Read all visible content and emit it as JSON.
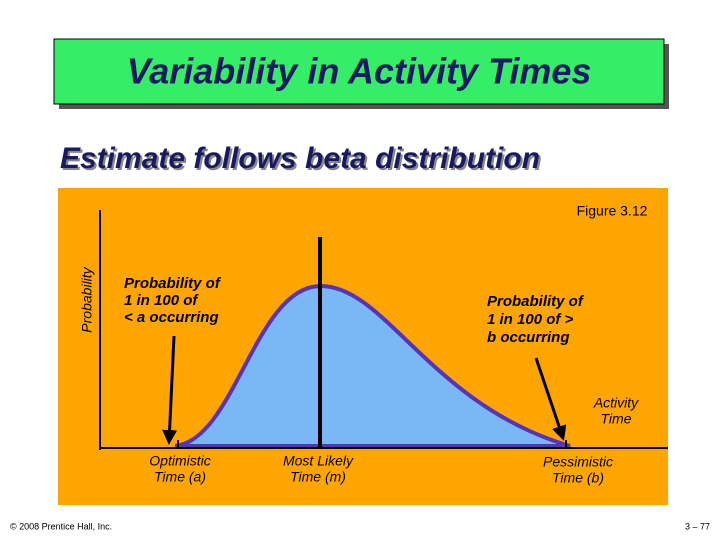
{
  "title": "Variability in Activity Times",
  "subtitle": "Estimate follows beta distribution",
  "figure_label": "Figure 3.12",
  "y_axis_label": "Probability",
  "annotations": {
    "left": [
      "Probability of",
      "1 in 100 of",
      "< a occurring"
    ],
    "right": [
      "Probability of",
      "1 in 100 of >",
      "b occurring"
    ]
  },
  "x_axis_label": [
    "Activity",
    "Time"
  ],
  "x_labels": {
    "optimistic": [
      "Optimistic",
      "Time (a)"
    ],
    "most_likely": [
      "Most Likely",
      "Time (m)"
    ],
    "pessimistic": [
      "Pessimistic",
      "Time (b)"
    ]
  },
  "footer": {
    "copyright": "© 2008 Prentice Hall, Inc.",
    "page": "3 – 77"
  }
}
